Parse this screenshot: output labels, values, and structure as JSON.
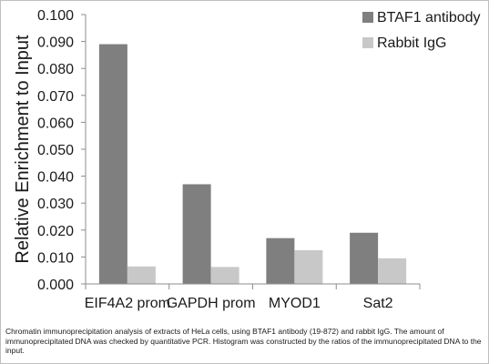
{
  "caption": "Chromatin immunoprecipitation analysis of extracts of HeLa cells, using BTAF1 antibody (19-872) and rabbit IgG. The amount of immunoprecipitated DNA was checked by quantitative PCR. Histogram was constructed by the ratios of the immunoprecipitated DNA to the input.",
  "chart_data": {
    "type": "bar",
    "title": "",
    "xlabel": "",
    "ylabel": "Relative Enrichment to Input",
    "categories": [
      "EIF4A2 prom",
      "GAPDH prom",
      "MYOD1",
      "Sat2"
    ],
    "series": [
      {
        "name": "BTAF1 antibody",
        "values": [
          0.089,
          0.037,
          0.017,
          0.019
        ],
        "color": "#7f7f7f"
      },
      {
        "name": "Rabbit IgG",
        "values": [
          0.0065,
          0.0063,
          0.0125,
          0.0095
        ],
        "color": "#c8c8c8"
      }
    ],
    "ylim": [
      0,
      0.1
    ],
    "yticks": [
      "0.000",
      "0.010",
      "0.020",
      "0.030",
      "0.040",
      "0.050",
      "0.060",
      "0.070",
      "0.080",
      "0.090",
      "0.100"
    ],
    "grid": false,
    "legend_position": "top-right"
  },
  "colors": {
    "axis": "#8c8c8c",
    "border": "#bfbfbf"
  }
}
